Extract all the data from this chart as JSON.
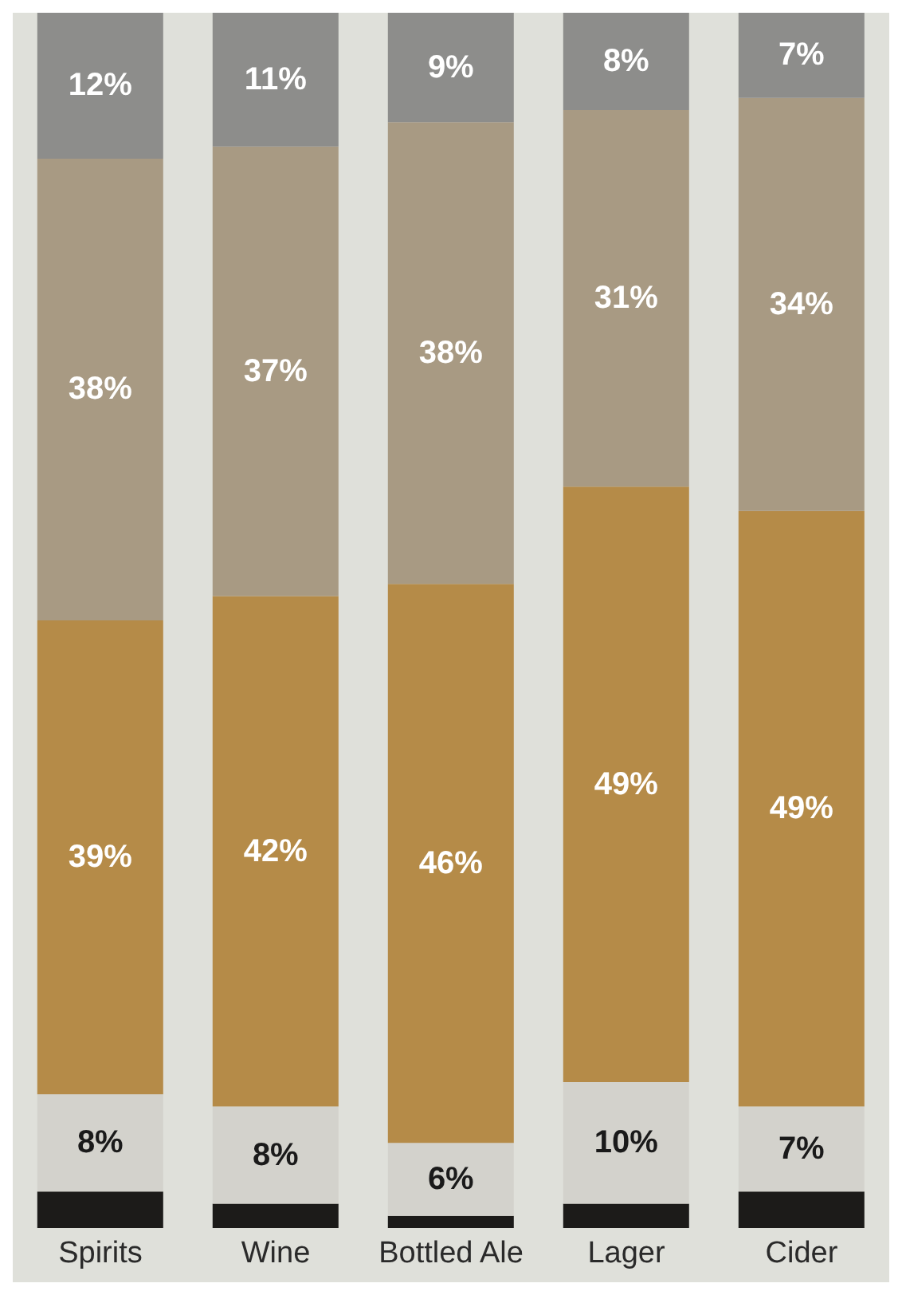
{
  "chart_data": {
    "type": "bar",
    "stacked": true,
    "categories": [
      "Spirits",
      "Wine",
      "Bottled Ale",
      "Lager",
      "Cider"
    ],
    "series": [
      {
        "color": "#1c1b19",
        "values": [
          3,
          2,
          1,
          2,
          3
        ],
        "value_labels": [
          null,
          null,
          null,
          null,
          null
        ]
      },
      {
        "color": "#d3d2cc",
        "values": [
          8,
          8,
          6,
          10,
          7
        ],
        "value_labels": [
          "8%",
          "8%",
          "6%",
          "10%",
          "7%"
        ]
      },
      {
        "color": "#b58b48",
        "values": [
          39,
          42,
          46,
          49,
          49
        ],
        "value_labels": [
          "39%",
          "42%",
          "46%",
          "49%",
          "49%"
        ]
      },
      {
        "color": "#a89a83",
        "values": [
          38,
          37,
          38,
          31,
          34
        ],
        "value_labels": [
          "38%",
          "37%",
          "38%",
          "31%",
          "34%"
        ]
      },
      {
        "color": "#8d8d8b",
        "values": [
          12,
          11,
          9,
          8,
          7
        ],
        "value_labels": [
          "12%",
          "11%",
          "9%",
          "8%",
          "7%"
        ]
      }
    ],
    "grid": false,
    "legend": false
  }
}
